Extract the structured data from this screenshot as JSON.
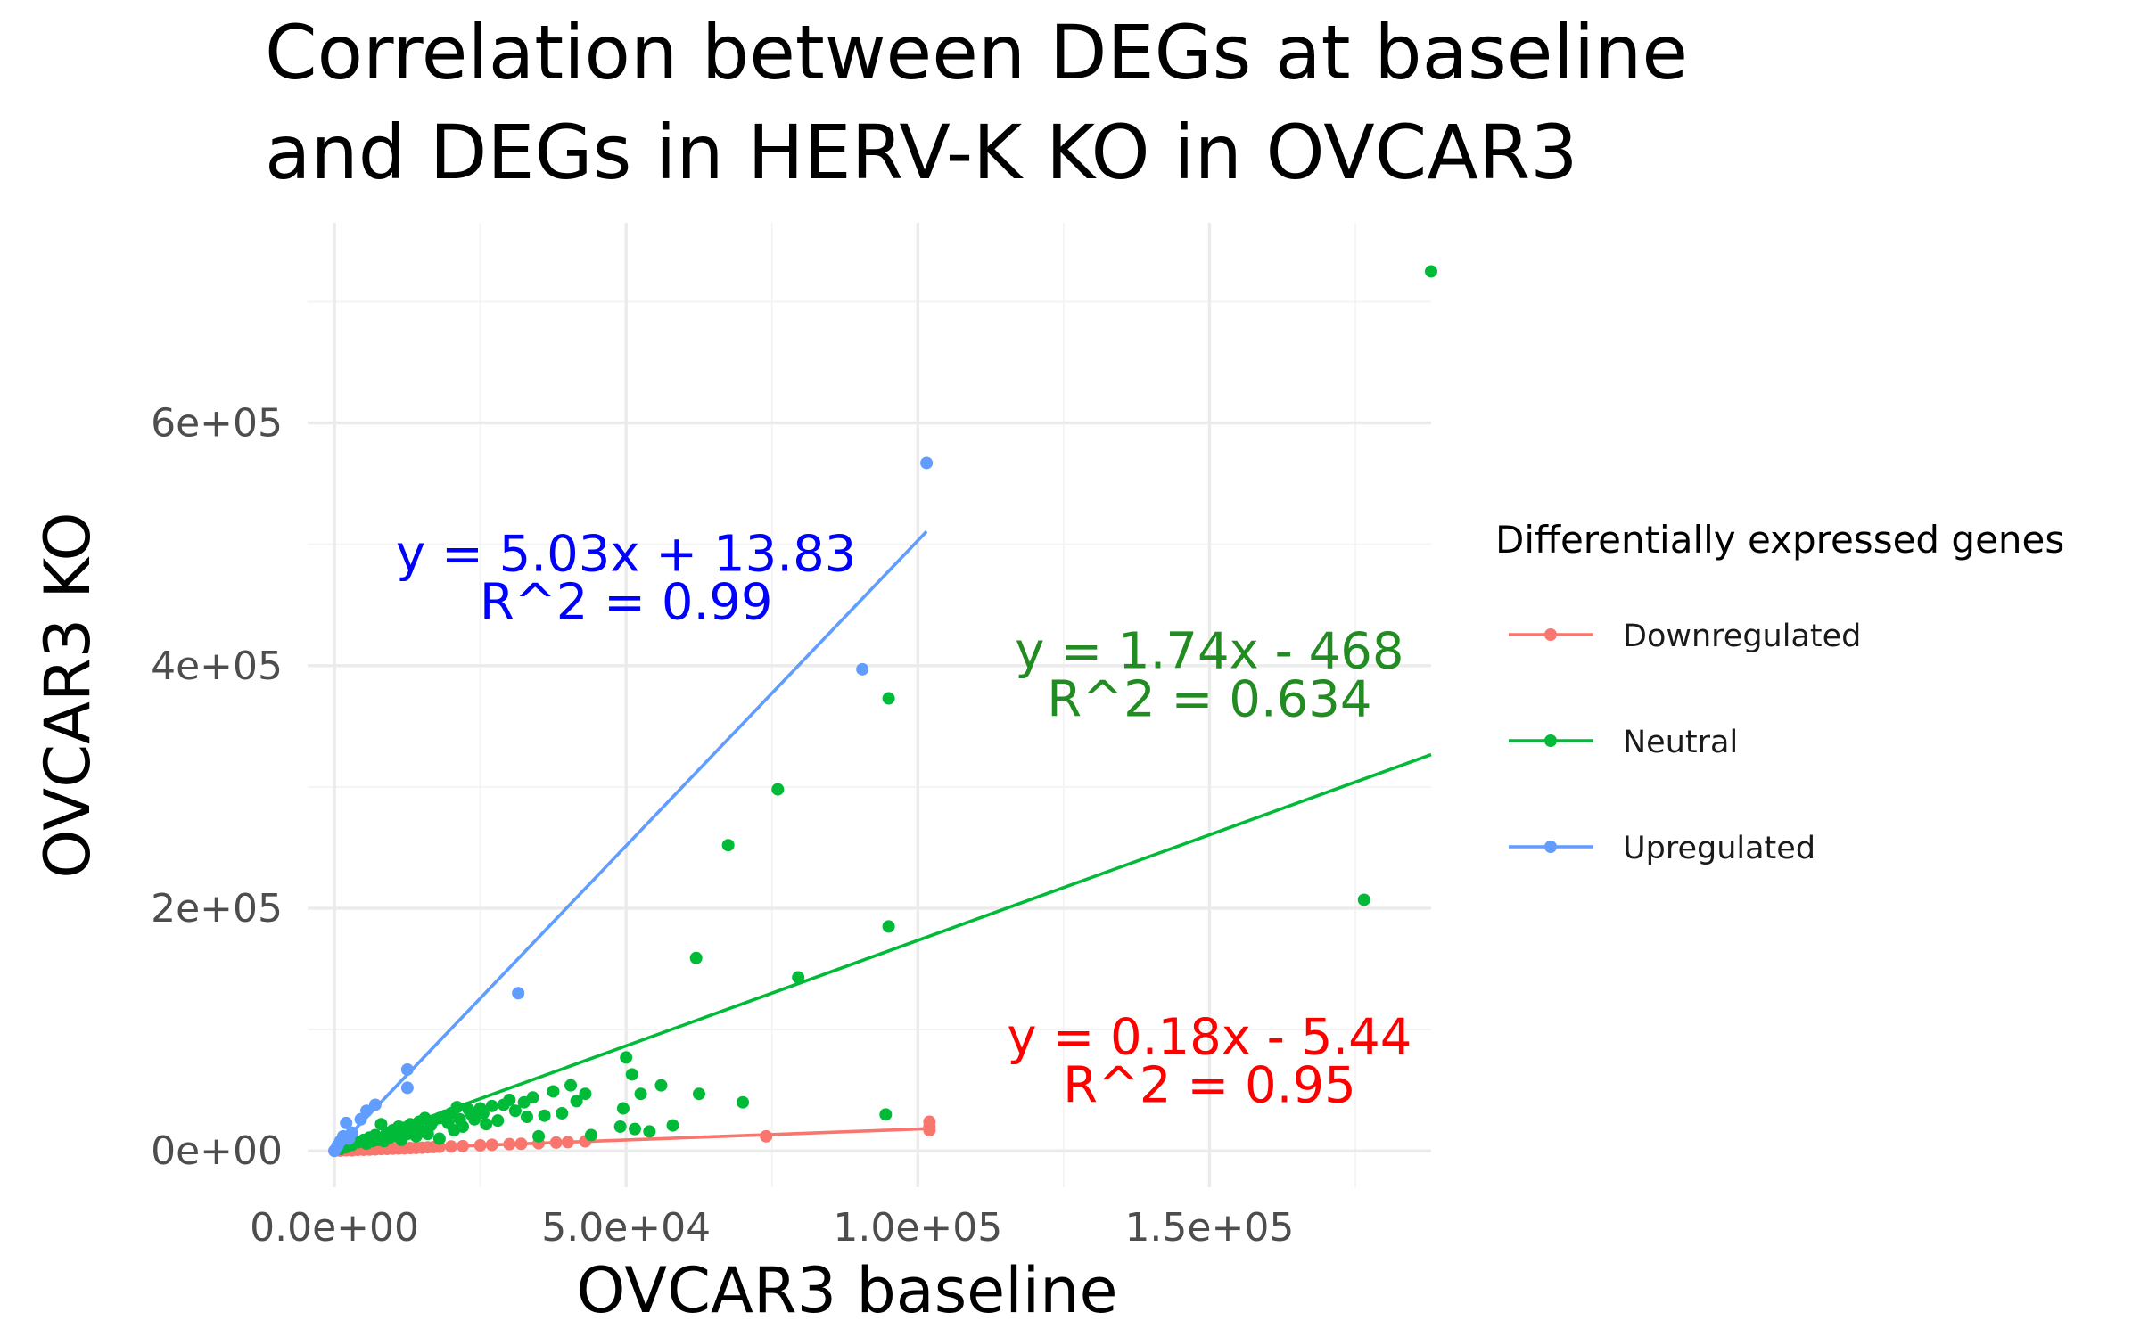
{
  "chart_data": {
    "type": "scatter",
    "title": [
      "Correlation between DEGs at baseline",
      "and DEGs in HERV-K KO in OVCAR3"
    ],
    "xlabel": "OVCAR3 baseline",
    "ylabel": "OVCAR3 KO",
    "xlim": [
      -4600,
      188000
    ],
    "ylim": [
      -30000,
      765000
    ],
    "x_ticks": [
      0,
      50000,
      100000,
      150000
    ],
    "x_tick_labels": [
      "0.0e+00",
      "5.0e+04",
      "1.0e+05",
      "1.5e+05"
    ],
    "x_minor": [
      25000,
      75000,
      125000,
      175000
    ],
    "y_ticks": [
      0,
      200000,
      400000,
      600000
    ],
    "y_tick_labels": [
      "0e+00",
      "2e+05",
      "4e+05",
      "6e+05"
    ],
    "y_minor": [
      100000,
      300000,
      500000,
      700000
    ],
    "grid": true,
    "legend": {
      "title": "Differentially expressed genes",
      "position": "right",
      "entries": [
        "Downregulated",
        "Neutral",
        "Upregulated"
      ]
    },
    "series": [
      {
        "name": "Downregulated",
        "color": "#F8766D",
        "fit": {
          "slope": 0.18,
          "intercept": -5.44,
          "x_range": [
            0,
            102000
          ]
        },
        "equation": "y = 0.18x - 5.44",
        "r2": "R^2 = 0.95",
        "label_color": "#FF0000",
        "label_pos": [
          150000,
          80000
        ],
        "points": [
          [
            0,
            0
          ],
          [
            1000,
            200
          ],
          [
            2000,
            500
          ],
          [
            3000,
            400
          ],
          [
            4000,
            800
          ],
          [
            5000,
            900
          ],
          [
            6000,
            1000
          ],
          [
            7000,
            1200
          ],
          [
            8000,
            1500
          ],
          [
            9000,
            1600
          ],
          [
            10000,
            1800
          ],
          [
            11000,
            1900
          ],
          [
            12000,
            2100
          ],
          [
            13000,
            2300
          ],
          [
            14000,
            2400
          ],
          [
            15000,
            2600
          ],
          [
            16000,
            2900
          ],
          [
            17000,
            3100
          ],
          [
            18000,
            3300
          ],
          [
            20000,
            3600
          ],
          [
            22000,
            3900
          ],
          [
            25000,
            4500
          ],
          [
            27000,
            5000
          ],
          [
            30000,
            5500
          ],
          [
            32000,
            5800
          ],
          [
            35000,
            6300
          ],
          [
            38000,
            6800
          ],
          [
            40000,
            7200
          ],
          [
            43000,
            7800
          ],
          [
            74000,
            12000
          ],
          [
            102000,
            17000
          ],
          [
            102000,
            20000
          ],
          [
            102000,
            24000
          ]
        ]
      },
      {
        "name": "Neutral",
        "color": "#00BA38",
        "fit": {
          "slope": 1.74,
          "intercept": -468,
          "x_range": [
            0,
            188000
          ]
        },
        "equation": "y = 1.74x - 468",
        "r2": "R^2 = 0.634",
        "label_color": "#228B22",
        "label_pos": [
          150000,
          398000
        ],
        "points": [
          [
            188000,
            725000
          ],
          [
            95000,
            373000
          ],
          [
            76000,
            298000
          ],
          [
            67500,
            252000
          ],
          [
            95000,
            185000
          ],
          [
            62000,
            159000
          ],
          [
            176500,
            207000
          ],
          [
            79500,
            143000
          ],
          [
            50000,
            77000
          ],
          [
            51000,
            63000
          ],
          [
            56000,
            54000
          ],
          [
            52500,
            47000
          ],
          [
            62500,
            47000
          ],
          [
            70000,
            40000
          ],
          [
            49500,
            35000
          ],
          [
            43000,
            47000
          ],
          [
            40500,
            54000
          ],
          [
            41500,
            41000
          ],
          [
            37500,
            49000
          ],
          [
            34000,
            44000
          ],
          [
            32500,
            40000
          ],
          [
            30000,
            42000
          ],
          [
            29000,
            38000
          ],
          [
            27000,
            37000
          ],
          [
            25000,
            35000
          ],
          [
            23000,
            34000
          ],
          [
            21000,
            36000
          ],
          [
            20000,
            31000
          ],
          [
            19000,
            29000
          ],
          [
            18000,
            27000
          ],
          [
            17000,
            25000
          ],
          [
            15500,
            27000
          ],
          [
            14500,
            24000
          ],
          [
            13000,
            22000
          ],
          [
            12000,
            19000
          ],
          [
            11000,
            20000
          ],
          [
            10000,
            17000
          ],
          [
            9000,
            15000
          ],
          [
            8000,
            22000
          ],
          [
            7000,
            13000
          ],
          [
            6000,
            11000
          ],
          [
            5000,
            9000
          ],
          [
            4000,
            7000
          ],
          [
            3000,
            5000
          ],
          [
            2000,
            3000
          ],
          [
            1000,
            1500
          ],
          [
            8500,
            8000
          ],
          [
            11500,
            9000
          ],
          [
            14000,
            12000
          ],
          [
            16000,
            14000
          ],
          [
            18000,
            10000
          ],
          [
            22000,
            20000
          ],
          [
            24000,
            26000
          ],
          [
            26000,
            22000
          ],
          [
            28000,
            25000
          ],
          [
            31000,
            33000
          ],
          [
            33000,
            28000
          ],
          [
            35000,
            12000
          ],
          [
            36000,
            29000
          ],
          [
            39000,
            31000
          ],
          [
            44000,
            13000
          ],
          [
            49000,
            20000
          ],
          [
            51500,
            18000
          ],
          [
            54000,
            16000
          ],
          [
            58000,
            21000
          ],
          [
            94500,
            30000
          ],
          [
            20500,
            17000
          ],
          [
            15000,
            16000
          ],
          [
            13500,
            18000
          ],
          [
            12500,
            14000
          ],
          [
            10500,
            12000
          ],
          [
            9500,
            11000
          ],
          [
            7500,
            9000
          ],
          [
            6500,
            8000
          ],
          [
            5500,
            6000
          ],
          [
            16500,
            21000
          ],
          [
            19500,
            23000
          ],
          [
            21500,
            26000
          ],
          [
            23500,
            30000
          ],
          [
            25500,
            31000
          ]
        ]
      },
      {
        "name": "Upregulated",
        "color": "#619CFF",
        "fit": {
          "slope": 5.03,
          "intercept": 13.83,
          "x_range": [
            0,
            101500
          ]
        },
        "equation": "y = 5.03x + 13.83",
        "r2": "R^2 = 0.99",
        "label_color": "#0000FF",
        "label_pos": [
          50000,
          478000
        ],
        "points": [
          [
            101500,
            567000
          ],
          [
            90500,
            397000
          ],
          [
            31500,
            130000
          ],
          [
            12500,
            67000
          ],
          [
            12500,
            52000
          ],
          [
            7000,
            38000
          ],
          [
            5500,
            33000
          ],
          [
            2000,
            23000
          ],
          [
            1500,
            12000
          ],
          [
            500,
            4000
          ],
          [
            0,
            0
          ],
          [
            3000,
            15000
          ],
          [
            4500,
            26000
          ],
          [
            1000,
            8000
          ],
          [
            2500,
            10000
          ]
        ]
      }
    ]
  }
}
